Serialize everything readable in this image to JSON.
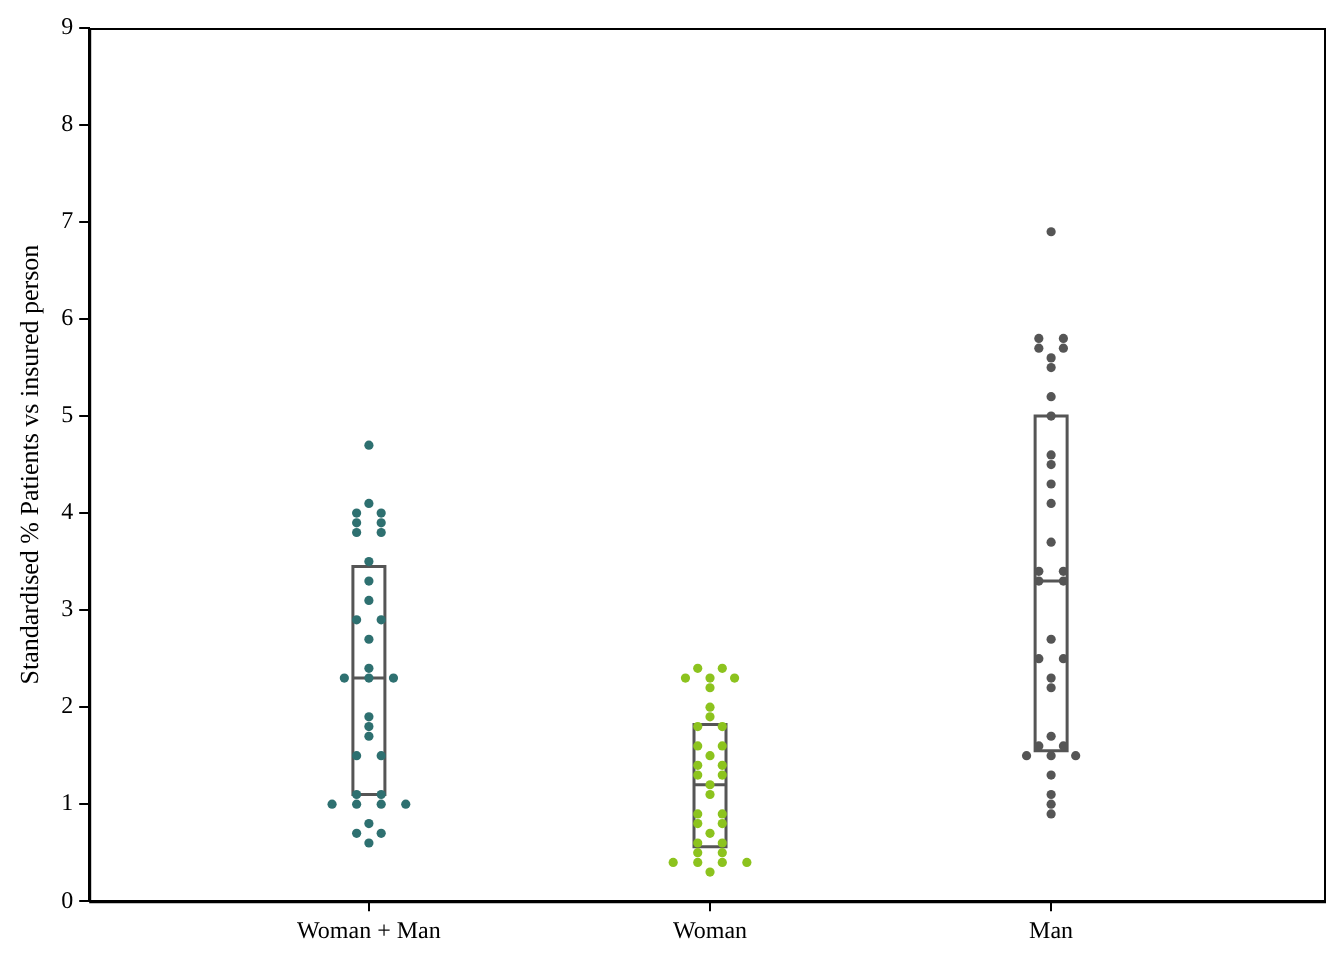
{
  "chart_data": {
    "type": "box",
    "ylabel": "Standardised % Patients vs insured person",
    "categories": [
      "Woman + Man",
      "Woman",
      "Man"
    ],
    "ylim": [
      0,
      9
    ],
    "yticks": [
      0,
      1,
      2,
      3,
      4,
      5,
      6,
      7,
      8,
      9
    ],
    "grid": false,
    "legend": false,
    "marker": "circle",
    "boxes": [
      {
        "low": 1.1,
        "q1": 1.1,
        "median": 2.3,
        "q3": 3.45,
        "high": 3.45
      },
      {
        "low": 0.56,
        "q1": 0.56,
        "median": 1.2,
        "q3": 1.82,
        "high": 1.82
      },
      {
        "low": 1.55,
        "q1": 1.55,
        "median": 3.3,
        "q3": 5.0,
        "high": 5.0
      }
    ],
    "series": [
      {
        "type": "scatter",
        "color": "#2e7070",
        "x": [
          "Woman + Man",
          "Woman + Man",
          "Woman + Man",
          "Woman + Man",
          "Woman + Man",
          "Woman + Man",
          "Woman + Man",
          "Woman + Man",
          "Woman + Man",
          "Woman + Man",
          "Woman + Man",
          "Woman + Man",
          "Woman + Man",
          "Woman + Man",
          "Woman + Man",
          "Woman + Man",
          "Woman + Man",
          "Woman + Man",
          "Woman + Man",
          "Woman + Man",
          "Woman + Man",
          "Woman + Man",
          "Woman + Man",
          "Woman + Man",
          "Woman + Man",
          "Woman + Man",
          "Woman + Man",
          "Woman + Man",
          "Woman + Man",
          "Woman + Man",
          "Woman + Man",
          "Woman + Man",
          "Woman + Man"
        ],
        "values": [
          4.7,
          4.1,
          4.0,
          4.0,
          3.9,
          3.9,
          3.8,
          3.8,
          3.5,
          3.3,
          3.1,
          2.9,
          2.9,
          2.7,
          2.4,
          2.3,
          2.3,
          2.3,
          1.9,
          1.8,
          1.7,
          1.5,
          1.5,
          1.1,
          1.1,
          1.0,
          1.0,
          1.0,
          1.0,
          0.8,
          0.7,
          0.7,
          0.6
        ]
      },
      {
        "type": "scatter",
        "color": "#8cc31e",
        "x": [
          "Woman",
          "Woman",
          "Woman",
          "Woman",
          "Woman",
          "Woman",
          "Woman",
          "Woman",
          "Woman",
          "Woman",
          "Woman",
          "Woman",
          "Woman",
          "Woman",
          "Woman",
          "Woman",
          "Woman",
          "Woman",
          "Woman",
          "Woman",
          "Woman",
          "Woman",
          "Woman",
          "Woman",
          "Woman",
          "Woman",
          "Woman",
          "Woman",
          "Woman",
          "Woman",
          "Woman",
          "Woman",
          "Woman"
        ],
        "values": [
          2.4,
          2.4,
          2.3,
          2.3,
          2.3,
          2.2,
          2.0,
          1.9,
          1.8,
          1.8,
          1.6,
          1.6,
          1.5,
          1.4,
          1.4,
          1.3,
          1.3,
          1.2,
          1.1,
          0.9,
          0.9,
          0.8,
          0.8,
          0.7,
          0.6,
          0.6,
          0.5,
          0.5,
          0.4,
          0.4,
          0.4,
          0.4,
          0.3
        ]
      },
      {
        "type": "scatter",
        "color": "#555555",
        "x": [
          "Man",
          "Man",
          "Man",
          "Man",
          "Man",
          "Man",
          "Man",
          "Man",
          "Man",
          "Man",
          "Man",
          "Man",
          "Man",
          "Man",
          "Man",
          "Man",
          "Man",
          "Man",
          "Man",
          "Man",
          "Man",
          "Man",
          "Man",
          "Man",
          "Man",
          "Man",
          "Man",
          "Man",
          "Man",
          "Man",
          "Man",
          "Man",
          "Man"
        ],
        "values": [
          6.9,
          5.8,
          5.8,
          5.7,
          5.7,
          5.6,
          5.5,
          5.2,
          5.0,
          4.6,
          4.5,
          4.3,
          4.1,
          3.7,
          3.4,
          3.4,
          3.3,
          3.3,
          2.7,
          2.5,
          2.5,
          2.3,
          2.2,
          1.7,
          1.6,
          1.6,
          1.5,
          1.5,
          1.5,
          1.3,
          1.1,
          1.0,
          0.9
        ]
      }
    ]
  }
}
